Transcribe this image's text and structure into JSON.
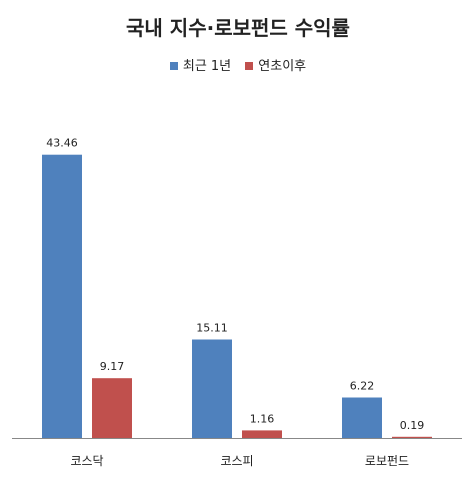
{
  "chart_data": {
    "type": "bar",
    "title": "국내 지수·로보펀드 수익률",
    "categories": [
      "코스닥",
      "코스피",
      "로보펀드"
    ],
    "series": [
      {
        "name": "최근 1년",
        "values": [
          43.46,
          15.11,
          6.22
        ],
        "labels": [
          "43.46",
          "15.11",
          "6.22"
        ],
        "color": "#4F81BD"
      },
      {
        "name": "연초이후",
        "values": [
          9.17,
          1.16,
          0.19
        ],
        "labels": [
          "9.17",
          "1.16",
          "0.19"
        ],
        "color": "#C0504D"
      }
    ],
    "ylim": [
      0,
      49.7
    ],
    "grid": false,
    "legend_position": "top"
  }
}
